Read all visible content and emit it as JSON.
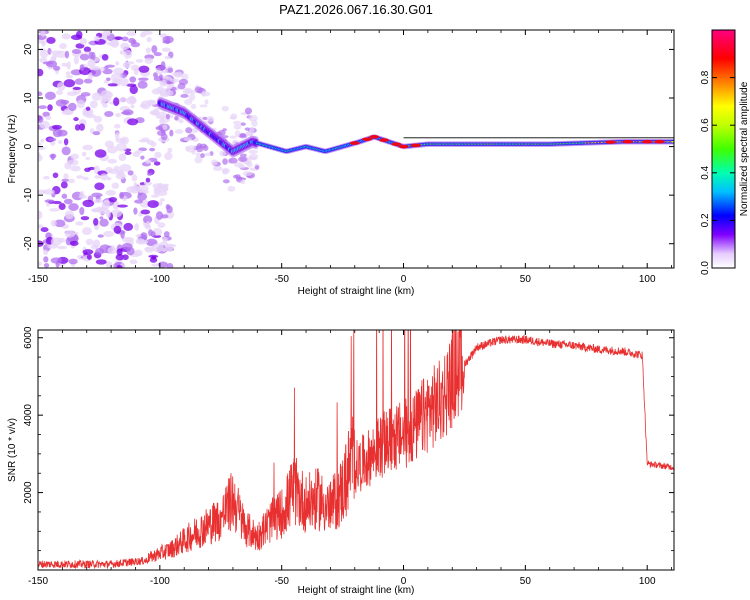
{
  "title": "PAZ1.2026.067.16.30.G01",
  "chart_data": [
    {
      "type": "heatmap",
      "name": "spectrogram",
      "xlabel": "Height of straight line (km)",
      "ylabel": "Frequency (Hz)",
      "xlim": [
        -150,
        111
      ],
      "ylim": [
        -25,
        24
      ],
      "xticks": [
        -150,
        -100,
        -50,
        0,
        50,
        100
      ],
      "xtick_labels": [
        "-150",
        "-100",
        "-50",
        "0",
        "50",
        "100"
      ],
      "yticks": [
        -20,
        -10,
        0,
        10,
        20
      ],
      "ytick_labels": [
        "-20",
        "-10",
        "0",
        "10",
        "20"
      ],
      "colorbar": {
        "label": "Normalized spectral amplitude",
        "range": [
          0,
          1
        ],
        "ticks": [
          0.0,
          0.2,
          0.4,
          0.6,
          0.8
        ],
        "tick_labels": [
          "0.0",
          "0.2",
          "0.4",
          "0.6",
          "0.8"
        ]
      },
      "ridge": {
        "x": [
          -100,
          -90,
          -80,
          -70,
          -62,
          -55,
          -48,
          -40,
          -32,
          -25,
          -18,
          -12,
          -6,
          0,
          10,
          30,
          60,
          90,
          110
        ],
        "freq": [
          9,
          7,
          3,
          -1,
          1,
          0,
          -1,
          0,
          -1,
          0,
          1,
          2,
          1,
          0,
          0.5,
          0.5,
          0.5,
          1,
          1
        ]
      },
      "colors": [
        "#ffffff",
        "#e7d4f8",
        "#b070f0",
        "#7a00e8",
        "#0000ff",
        "#00c8ff",
        "#00ff80",
        "#80ff00",
        "#ffff00",
        "#ff8000",
        "#ff0000",
        "#ff00a0"
      ]
    },
    {
      "type": "line",
      "name": "snr",
      "xlabel": "Height of straight line (km)",
      "ylabel": "SNR (10 * v/v)",
      "xlim": [
        -150,
        111
      ],
      "ylim": [
        0,
        6200
      ],
      "xticks": [
        -150,
        -100,
        -50,
        0,
        50,
        100
      ],
      "xtick_labels": [
        "-150",
        "-100",
        "-50",
        "0",
        "50",
        "100"
      ],
      "yticks": [
        2000,
        4000,
        6000
      ],
      "ytick_labels": [
        "2000",
        "4000",
        "6000"
      ],
      "series": [
        {
          "name": "SNR",
          "color": "#e83030",
          "x": [
            -150,
            -120,
            -105,
            -95,
            -85,
            -75,
            -70,
            -65,
            -60,
            -55,
            -50,
            -45,
            -40,
            -35,
            -30,
            -25,
            -22,
            -20,
            -15,
            -10,
            -5,
            0,
            5,
            10,
            15,
            20,
            25,
            30,
            40,
            50,
            60,
            70,
            80,
            90,
            98,
            100,
            105,
            111
          ],
          "values": [
            150,
            150,
            250,
            450,
            800,
            1100,
            1500,
            900,
            700,
            1000,
            1200,
            1700,
            1400,
            1500,
            1300,
            1700,
            2200,
            2500,
            2700,
            3000,
            3200,
            3300,
            3500,
            3900,
            4100,
            4700,
            5300,
            5750,
            5950,
            5950,
            5850,
            5800,
            5700,
            5650,
            5550,
            2750,
            2700,
            2650
          ]
        }
      ]
    }
  ]
}
